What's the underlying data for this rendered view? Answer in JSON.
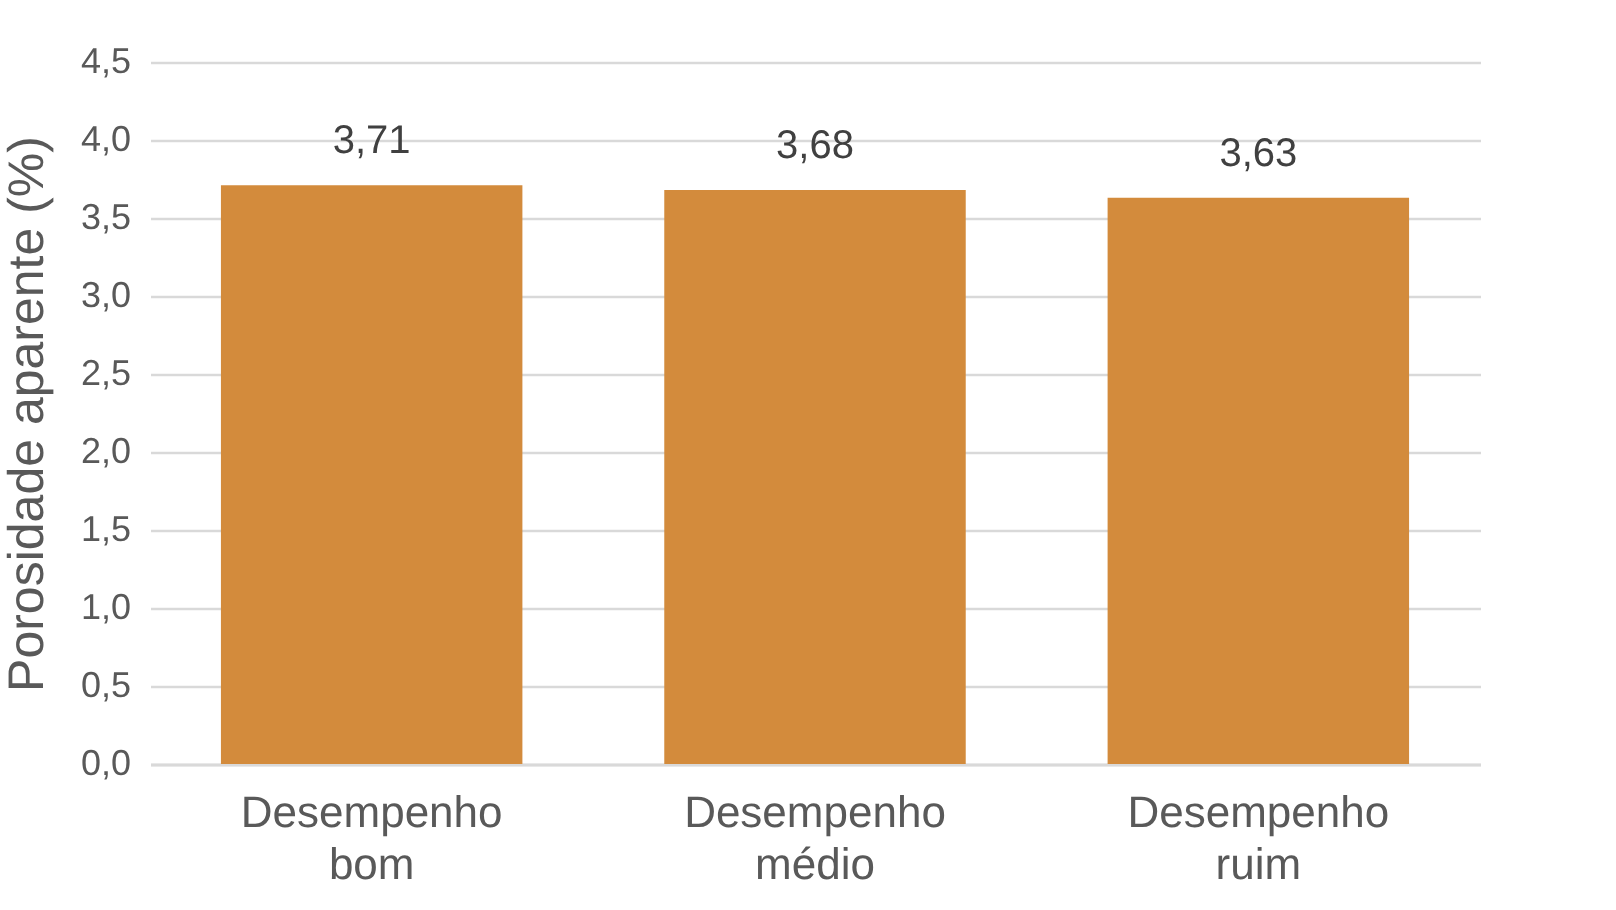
{
  "chart_data": {
    "type": "bar",
    "ylabel": "Porosidade aparente (%)",
    "categories": [
      "Desempenho bom",
      "Desempenho médio",
      "Desempenho ruim"
    ],
    "values": [
      3.71,
      3.68,
      3.63
    ],
    "color": "#d38b3c",
    "value_labels": [
      "3,71",
      "3,68",
      "3,63"
    ],
    "ylim": [
      0,
      4.5
    ],
    "yticks": [
      {
        "value": 0,
        "label": "0,0"
      },
      {
        "value": 0.5,
        "label": "0,5"
      },
      {
        "value": 1,
        "label": "1,0"
      },
      {
        "value": 1.5,
        "label": "1,5"
      },
      {
        "value": 2,
        "label": "2,0"
      },
      {
        "value": 2.5,
        "label": "2,5"
      },
      {
        "value": 3,
        "label": "3,0"
      },
      {
        "value": 3.5,
        "label": "3,5"
      },
      {
        "value": 4,
        "label": "4,0"
      },
      {
        "value": 4.5,
        "label": "4,5"
      }
    ],
    "grid": "y"
  }
}
